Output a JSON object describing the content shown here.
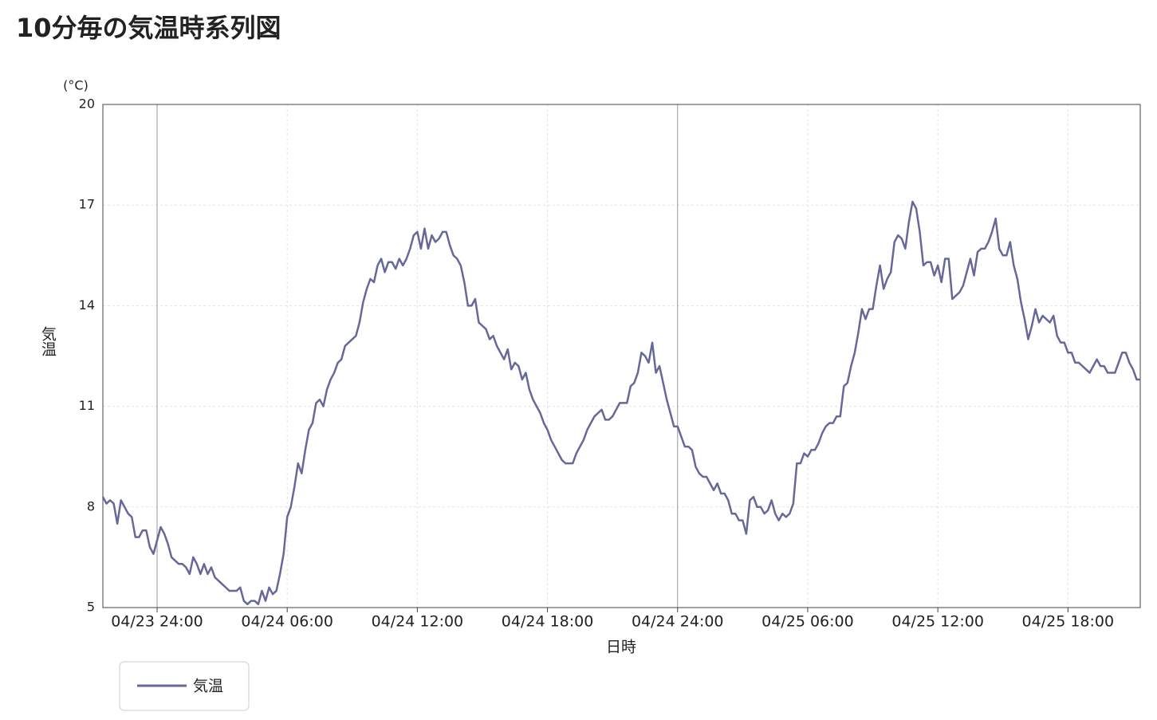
{
  "chart_data": {
    "type": "line",
    "title": "10分毎の気温時系列図",
    "y_unit": "(°C)",
    "y_label": "気温",
    "x_label": "日時",
    "ylim": [
      5,
      20
    ],
    "yticks": [
      5,
      8,
      11,
      14,
      17,
      20
    ],
    "xlim": [
      "04/23 21:30",
      "04/25 21:20"
    ],
    "xticks": [
      {
        "value": "04/24 00:00",
        "label": "04/23 24:00"
      },
      "04/24 06:00",
      "04/24 12:00",
      "04/24 18:00",
      {
        "value": "04/25 00:00",
        "label": "04/24 24:00"
      },
      "04/25 06:00",
      "04/25 12:00",
      "04/25 18:00"
    ],
    "grid": true,
    "legend": "bottom-left",
    "x": [
      "04/23 21:30",
      "04/23 21:40",
      "04/23 21:50",
      "04/23 22:00",
      "04/23 22:10",
      "04/23 22:20",
      "04/23 22:30",
      "04/23 22:40",
      "04/23 22:50",
      "04/23 23:00",
      "04/23 23:10",
      "04/23 23:20",
      "04/23 23:30",
      "04/23 23:40",
      "04/23 23:50",
      "04/24 00:00",
      "04/24 00:10",
      "04/24 00:20",
      "04/24 00:30",
      "04/24 00:40",
      "04/24 00:50",
      "04/24 01:00",
      "04/24 01:10",
      "04/24 01:20",
      "04/24 01:30",
      "04/24 01:40",
      "04/24 01:50",
      "04/24 02:00",
      "04/24 02:10",
      "04/24 02:20",
      "04/24 02:30",
      "04/24 02:40",
      "04/24 02:50",
      "04/24 03:00",
      "04/24 03:10",
      "04/24 03:20",
      "04/24 03:30",
      "04/24 03:40",
      "04/24 03:50",
      "04/24 04:00",
      "04/24 04:10",
      "04/24 04:20",
      "04/24 04:30",
      "04/24 04:40",
      "04/24 04:50",
      "04/24 05:00",
      "04/24 05:10",
      "04/24 05:20",
      "04/24 05:30",
      "04/24 05:40",
      "04/24 05:50",
      "04/24 06:00",
      "04/24 06:10",
      "04/24 06:20",
      "04/24 06:30",
      "04/24 06:40",
      "04/24 06:50",
      "04/24 07:00",
      "04/24 07:10",
      "04/24 07:20",
      "04/24 07:30",
      "04/24 07:40",
      "04/24 07:50",
      "04/24 08:00",
      "04/24 08:10",
      "04/24 08:20",
      "04/24 08:30",
      "04/24 08:40",
      "04/24 08:50",
      "04/24 09:00",
      "04/24 09:10",
      "04/24 09:20",
      "04/24 09:30",
      "04/24 09:40",
      "04/24 09:50",
      "04/24 10:00",
      "04/24 10:10",
      "04/24 10:20",
      "04/24 10:30",
      "04/24 10:40",
      "04/24 10:50",
      "04/24 11:00",
      "04/24 11:10",
      "04/24 11:20",
      "04/24 11:30",
      "04/24 11:40",
      "04/24 11:50",
      "04/24 12:00",
      "04/24 12:10",
      "04/24 12:20",
      "04/24 12:30",
      "04/24 12:40",
      "04/24 12:50",
      "04/24 13:00",
      "04/24 13:10",
      "04/24 13:20",
      "04/24 13:30",
      "04/24 13:40",
      "04/24 13:50",
      "04/24 14:00",
      "04/24 14:10",
      "04/24 14:20",
      "04/24 14:30",
      "04/24 14:40",
      "04/24 14:50",
      "04/24 15:00",
      "04/24 15:10",
      "04/24 15:20",
      "04/24 15:30",
      "04/24 15:40",
      "04/24 15:50",
      "04/24 16:00",
      "04/24 16:10",
      "04/24 16:20",
      "04/24 16:30",
      "04/24 16:40",
      "04/24 16:50",
      "04/24 17:00",
      "04/24 17:10",
      "04/24 17:20",
      "04/24 17:30",
      "04/24 17:40",
      "04/24 17:50",
      "04/24 18:00",
      "04/24 18:10",
      "04/24 18:20",
      "04/24 18:30",
      "04/24 18:40",
      "04/24 18:50",
      "04/24 19:00",
      "04/24 19:10",
      "04/24 19:20",
      "04/24 19:30",
      "04/24 19:40",
      "04/24 19:50",
      "04/24 20:00",
      "04/24 20:10",
      "04/24 20:20",
      "04/24 20:30",
      "04/24 20:40",
      "04/24 20:50",
      "04/24 21:00",
      "04/24 21:10",
      "04/24 21:20",
      "04/24 21:30",
      "04/24 21:40",
      "04/24 21:50",
      "04/24 22:00",
      "04/24 22:10",
      "04/24 22:20",
      "04/24 22:30",
      "04/24 22:40",
      "04/24 22:50",
      "04/24 23:00",
      "04/24 23:10",
      "04/24 23:20",
      "04/24 23:30",
      "04/24 23:40",
      "04/24 23:50",
      "04/25 00:00",
      "04/25 00:10",
      "04/25 00:20",
      "04/25 00:30",
      "04/25 00:40",
      "04/25 00:50",
      "04/25 01:00",
      "04/25 01:10",
      "04/25 01:20",
      "04/25 01:30",
      "04/25 01:40",
      "04/25 01:50",
      "04/25 02:00",
      "04/25 02:10",
      "04/25 02:20",
      "04/25 02:30",
      "04/25 02:40",
      "04/25 02:50",
      "04/25 03:00",
      "04/25 03:10",
      "04/25 03:20",
      "04/25 03:30",
      "04/25 03:40",
      "04/25 03:50",
      "04/25 04:00",
      "04/25 04:10",
      "04/25 04:20",
      "04/25 04:30",
      "04/25 04:40",
      "04/25 04:50",
      "04/25 05:00",
      "04/25 05:10",
      "04/25 05:20",
      "04/25 05:30",
      "04/25 05:40",
      "04/25 05:50",
      "04/25 06:00",
      "04/25 06:10",
      "04/25 06:20",
      "04/25 06:30",
      "04/25 06:40",
      "04/25 06:50",
      "04/25 07:00",
      "04/25 07:10",
      "04/25 07:20",
      "04/25 07:30",
      "04/25 07:40",
      "04/25 07:50",
      "04/25 08:00",
      "04/25 08:10",
      "04/25 08:20",
      "04/25 08:30",
      "04/25 08:40",
      "04/25 08:50",
      "04/25 09:00",
      "04/25 09:10",
      "04/25 09:20",
      "04/25 09:30",
      "04/25 09:40",
      "04/25 09:50",
      "04/25 10:00",
      "04/25 10:10",
      "04/25 10:20",
      "04/25 10:30",
      "04/25 10:40",
      "04/25 10:50",
      "04/25 11:00",
      "04/25 11:10",
      "04/25 11:20",
      "04/25 11:30",
      "04/25 11:40",
      "04/25 11:50",
      "04/25 12:00",
      "04/25 12:10",
      "04/25 12:20",
      "04/25 12:30",
      "04/25 12:40",
      "04/25 12:50",
      "04/25 13:00",
      "04/25 13:10",
      "04/25 13:20",
      "04/25 13:30",
      "04/25 13:40",
      "04/25 13:50",
      "04/25 14:00",
      "04/25 14:10",
      "04/25 14:20",
      "04/25 14:30",
      "04/25 14:40",
      "04/25 14:50",
      "04/25 15:00",
      "04/25 15:10",
      "04/25 15:20",
      "04/25 15:30",
      "04/25 15:40",
      "04/25 15:50",
      "04/25 16:00",
      "04/25 16:10",
      "04/25 16:20",
      "04/25 16:30",
      "04/25 16:40",
      "04/25 16:50",
      "04/25 17:00",
      "04/25 17:10",
      "04/25 17:20",
      "04/25 17:30",
      "04/25 17:40",
      "04/25 17:50",
      "04/25 18:00",
      "04/25 18:10",
      "04/25 18:20",
      "04/25 18:30",
      "04/25 18:40",
      "04/25 18:50",
      "04/25 19:00",
      "04/25 19:10",
      "04/25 19:20",
      "04/25 19:30",
      "04/25 19:40",
      "04/25 19:50",
      "04/25 20:00",
      "04/25 20:10",
      "04/25 20:20",
      "04/25 20:30",
      "04/25 20:40",
      "04/25 20:50",
      "04/25 21:00",
      "04/25 21:10",
      "04/25 21:20"
    ],
    "series": [
      {
        "name": "気温",
        "color": "#67679a",
        "values": [
          8.3,
          8.1,
          8.2,
          8.1,
          7.5,
          8.2,
          8.0,
          7.8,
          7.7,
          7.1,
          7.1,
          7.3,
          7.3,
          6.8,
          6.6,
          7.0,
          7.4,
          7.2,
          6.9,
          6.5,
          6.4,
          6.3,
          6.3,
          6.2,
          6.0,
          6.5,
          6.3,
          6.0,
          6.3,
          6.0,
          6.2,
          5.9,
          5.8,
          5.7,
          5.6,
          5.5,
          5.5,
          5.5,
          5.6,
          5.2,
          5.1,
          5.2,
          5.2,
          5.1,
          5.5,
          5.2,
          5.6,
          5.4,
          5.5,
          6.0,
          6.6,
          7.7,
          8.0,
          8.6,
          9.3,
          9.0,
          9.7,
          10.3,
          10.5,
          11.1,
          11.2,
          11.0,
          11.5,
          11.8,
          12.0,
          12.3,
          12.4,
          12.8,
          12.9,
          13.0,
          13.1,
          13.5,
          14.1,
          14.5,
          14.8,
          14.7,
          15.2,
          15.4,
          15.0,
          15.3,
          15.3,
          15.1,
          15.4,
          15.2,
          15.4,
          15.7,
          16.1,
          16.2,
          15.7,
          16.3,
          15.7,
          16.1,
          15.9,
          16.0,
          16.2,
          16.2,
          15.8,
          15.5,
          15.4,
          15.2,
          14.7,
          14.0,
          14.0,
          14.2,
          13.5,
          13.4,
          13.3,
          13.0,
          13.1,
          12.8,
          12.6,
          12.4,
          12.7,
          12.1,
          12.3,
          12.2,
          11.8,
          12.0,
          11.5,
          11.2,
          11.0,
          10.8,
          10.5,
          10.3,
          10.0,
          9.8,
          9.6,
          9.4,
          9.3,
          9.3,
          9.3,
          9.6,
          9.8,
          10.0,
          10.3,
          10.5,
          10.7,
          10.8,
          10.9,
          10.6,
          10.6,
          10.7,
          10.9,
          11.1,
          11.1,
          11.1,
          11.6,
          11.7,
          12.0,
          12.6,
          12.5,
          12.3,
          12.9,
          12.0,
          12.2,
          11.7,
          11.2,
          10.8,
          10.4,
          10.4,
          10.1,
          9.8,
          9.8,
          9.7,
          9.2,
          9.0,
          8.9,
          8.9,
          8.7,
          8.5,
          8.7,
          8.4,
          8.4,
          8.2,
          7.8,
          7.8,
          7.6,
          7.6,
          7.2,
          8.2,
          8.3,
          8.0,
          8.0,
          7.8,
          7.9,
          8.2,
          7.8,
          7.6,
          7.8,
          7.7,
          7.8,
          8.1,
          9.3,
          9.3,
          9.6,
          9.5,
          9.7,
          9.7,
          9.9,
          10.2,
          10.4,
          10.5,
          10.5,
          10.7,
          10.7,
          11.6,
          11.7,
          12.2,
          12.6,
          13.2,
          13.9,
          13.6,
          13.9,
          13.9,
          14.6,
          15.2,
          14.5,
          14.8,
          15.0,
          15.9,
          16.1,
          16.0,
          15.7,
          16.5,
          17.1,
          16.9,
          16.2,
          15.2,
          15.3,
          15.3,
          14.9,
          15.2,
          14.7,
          15.4,
          15.4,
          14.2,
          14.3,
          14.4,
          14.6,
          15.0,
          15.4,
          14.9,
          15.6,
          15.7,
          15.7,
          15.9,
          16.2,
          16.6,
          15.7,
          15.5,
          15.5,
          15.9,
          15.2,
          14.8,
          14.1,
          13.6,
          13.0,
          13.4,
          13.9,
          13.5,
          13.7,
          13.6,
          13.5,
          13.7,
          13.1,
          12.9,
          12.9,
          12.6,
          12.6,
          12.3,
          12.3,
          12.2,
          12.1,
          12.0,
          12.2,
          12.4,
          12.2,
          12.2,
          12.0,
          12.0,
          12.0,
          12.3,
          12.6,
          12.6,
          12.3,
          12.1,
          11.8,
          11.8
        ]
      }
    ]
  }
}
